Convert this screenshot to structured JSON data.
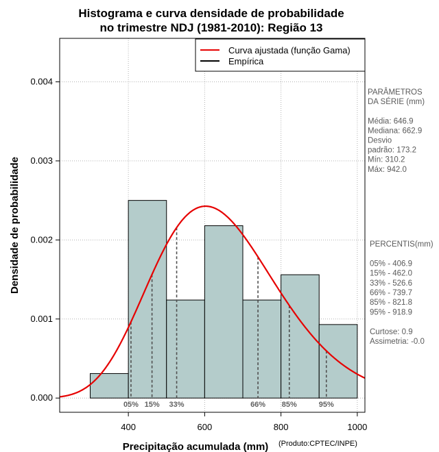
{
  "chart_data": {
    "type": "histogram",
    "title_lines": [
      "Histograma e curva densidade de probabilidade",
      "no trimestre NDJ (1981-2010): Região 13"
    ],
    "xlabel": "Precipitação acumulada (mm)",
    "ylabel": "Densidade de probabilidade",
    "credit": "(Produto:CPTEC/INPE)",
    "xlim": [
      220,
      1020
    ],
    "ylim": [
      -0.00018,
      0.00455
    ],
    "x_ticks": [
      400,
      600,
      800,
      1000
    ],
    "x_tick_labels": [
      "400",
      "600",
      "800",
      "1000"
    ],
    "y_ticks": [
      0,
      0.001,
      0.002,
      0.003,
      0.004
    ],
    "y_tick_labels": [
      "0.000",
      "0.001",
      "0.002",
      "0.003",
      "0.004"
    ],
    "grid": true,
    "bins": [
      {
        "start": 300,
        "end": 400,
        "density": 0.00031
      },
      {
        "start": 400,
        "end": 500,
        "density": 0.0025
      },
      {
        "start": 500,
        "end": 600,
        "density": 0.00124
      },
      {
        "start": 600,
        "end": 700,
        "density": 0.00218
      },
      {
        "start": 700,
        "end": 800,
        "density": 0.00124
      },
      {
        "start": 800,
        "end": 900,
        "density": 0.00156
      },
      {
        "start": 900,
        "end": 1000,
        "density": 0.00093
      }
    ],
    "bar_color": "#b4cccb",
    "curve": {
      "name": "Curva ajustada (função Gama)",
      "color": "#e60000",
      "shape": 14.6,
      "scale": 44.3
    },
    "empirical_legend": {
      "name": "Empírica",
      "color": "#000000"
    },
    "legend_position": "top-right",
    "percentiles": [
      {
        "label": "05%",
        "value": 406.9
      },
      {
        "label": "15%",
        "value": 462.0
      },
      {
        "label": "33%",
        "value": 526.6
      },
      {
        "label": "66%",
        "value": 739.7
      },
      {
        "label": "85%",
        "value": 821.8
      },
      {
        "label": "95%",
        "value": 918.9
      }
    ]
  },
  "side_panel": {
    "params_lines": [
      "PARÂMETROS",
      " DA SÉRIE (mm)",
      "",
      "Média:  646.9",
      "Mediana:  662.9",
      "Desvio",
      "padrão:  173.2",
      "Mín:  310.2",
      "Máx:  942.0"
    ],
    "percentis_lines": [
      " PERCENTIS(mm)",
      "",
      "05% -  406.9",
      "15% -  462.0",
      "33% -  526.6",
      "66% -  739.7",
      "85% -  821.8",
      "95% -  918.9",
      "",
      "Curtose:  0.9",
      "Assimetria:  -0.0"
    ]
  }
}
